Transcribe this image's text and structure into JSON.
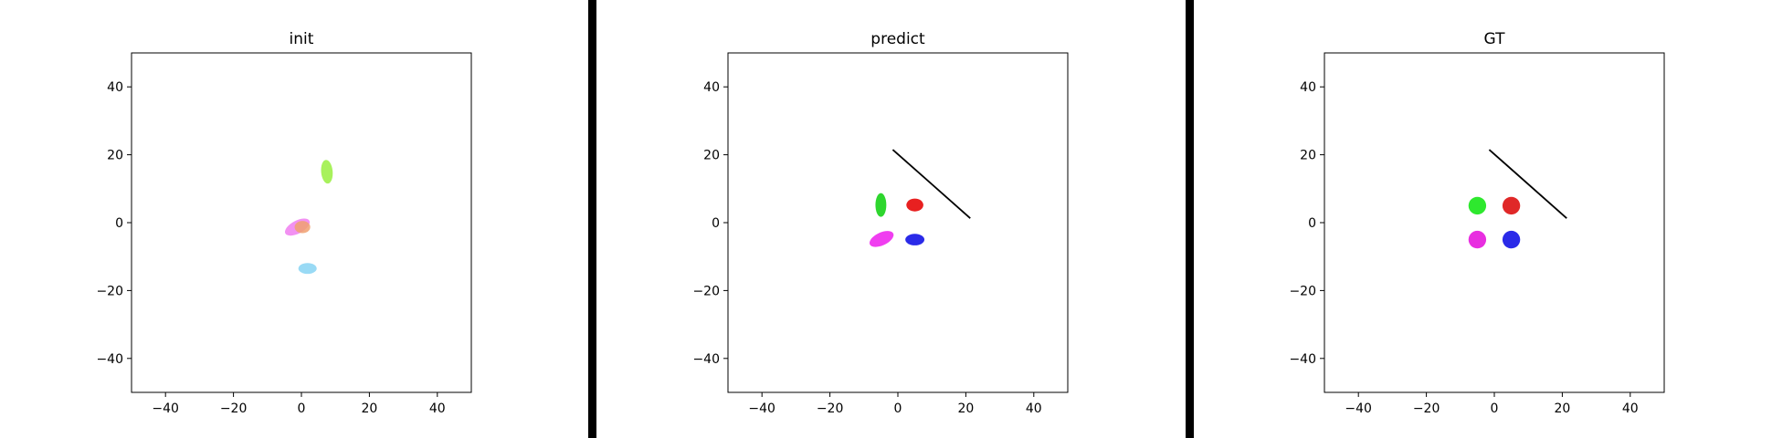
{
  "chart_data": [
    {
      "type": "scatter",
      "title": "init",
      "xlim": [
        -50,
        50
      ],
      "ylim": [
        -50,
        50
      ],
      "xticks": [
        -40,
        -20,
        0,
        20,
        40
      ],
      "yticks": [
        -40,
        -20,
        0,
        20,
        40
      ],
      "grid": false,
      "ellipses": [
        {
          "cx": 7.5,
          "cy": 15,
          "rx": 1.7,
          "ry": 3.5,
          "angle": 5,
          "color": "#9ef04a",
          "opacity": 0.9
        },
        {
          "cx": -1.2,
          "cy": -1.3,
          "rx": 4.0,
          "ry": 1.9,
          "angle": 28,
          "color": "#f07ef0",
          "opacity": 0.85
        },
        {
          "cx": 0.3,
          "cy": -1.3,
          "rx": 2.3,
          "ry": 1.8,
          "angle": 0,
          "color": "#f0a070",
          "opacity": 0.85
        },
        {
          "cx": 1.8,
          "cy": -13.5,
          "rx": 2.7,
          "ry": 1.6,
          "angle": 0,
          "color": "#8ed6f4",
          "opacity": 0.9
        }
      ],
      "segments": []
    },
    {
      "type": "scatter",
      "title": "predict",
      "xlim": [
        -50,
        50
      ],
      "ylim": [
        -50,
        50
      ],
      "xticks": [
        -40,
        -20,
        0,
        20,
        40
      ],
      "yticks": [
        -40,
        -20,
        0,
        20,
        40
      ],
      "grid": false,
      "ellipses": [
        {
          "cx": -5,
          "cy": 5.2,
          "rx": 1.6,
          "ry": 3.5,
          "angle": 0,
          "color": "#2ed62e",
          "opacity": 1
        },
        {
          "cx": 5,
          "cy": 5.2,
          "rx": 2.5,
          "ry": 1.9,
          "angle": 0,
          "color": "#e82020",
          "opacity": 1
        },
        {
          "cx": -4.8,
          "cy": -4.8,
          "rx": 3.8,
          "ry": 1.9,
          "angle": 25,
          "color": "#f03ef0",
          "opacity": 1
        },
        {
          "cx": 5,
          "cy": -5,
          "rx": 2.8,
          "ry": 1.7,
          "angle": 0,
          "color": "#2a2ae8",
          "opacity": 1
        }
      ],
      "segments": [
        {
          "x1": -1.5,
          "y1": 21.5,
          "x2": 21.3,
          "y2": 1.3,
          "color": "#000000"
        }
      ]
    },
    {
      "type": "scatter",
      "title": "GT",
      "xlim": [
        -50,
        50
      ],
      "ylim": [
        -50,
        50
      ],
      "xticks": [
        -40,
        -20,
        0,
        20,
        40
      ],
      "yticks": [
        -40,
        -20,
        0,
        20,
        40
      ],
      "grid": false,
      "ellipses": [
        {
          "cx": -5,
          "cy": 5,
          "rx": 2.6,
          "ry": 2.6,
          "angle": 0,
          "color": "#2ee82e",
          "opacity": 1
        },
        {
          "cx": 5,
          "cy": 5,
          "rx": 2.6,
          "ry": 2.6,
          "angle": 0,
          "color": "#e02828",
          "opacity": 1
        },
        {
          "cx": -5,
          "cy": -5,
          "rx": 2.6,
          "ry": 2.6,
          "angle": 0,
          "color": "#e82ee0",
          "opacity": 1
        },
        {
          "cx": 5,
          "cy": -5,
          "rx": 2.6,
          "ry": 2.6,
          "angle": 0,
          "color": "#2a2ae8",
          "opacity": 1
        }
      ],
      "segments": [
        {
          "x1": -1.5,
          "y1": 21.5,
          "x2": 21.3,
          "y2": 1.3,
          "color": "#000000"
        }
      ]
    }
  ],
  "dividers": {
    "color": "#000000"
  }
}
